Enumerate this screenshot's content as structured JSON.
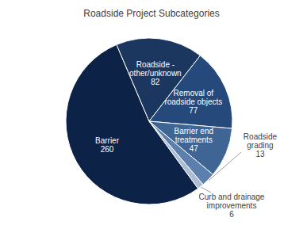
{
  "chart_data": {
    "type": "pie",
    "title": "Roadside Project Subcategories",
    "categories": [
      "Barrier",
      "Roadside - other/unknown",
      "Removal of roadside objects",
      "Barrier end treatments",
      "Roadside grading",
      "Curb and drainage improvements"
    ],
    "values": [
      260,
      82,
      77,
      47,
      13,
      6
    ],
    "colors": [
      "#0c2247",
      "#1c375f",
      "#25497b",
      "#3f6594",
      "#5c80ad",
      "#aebdd6"
    ],
    "data_labels": true
  }
}
